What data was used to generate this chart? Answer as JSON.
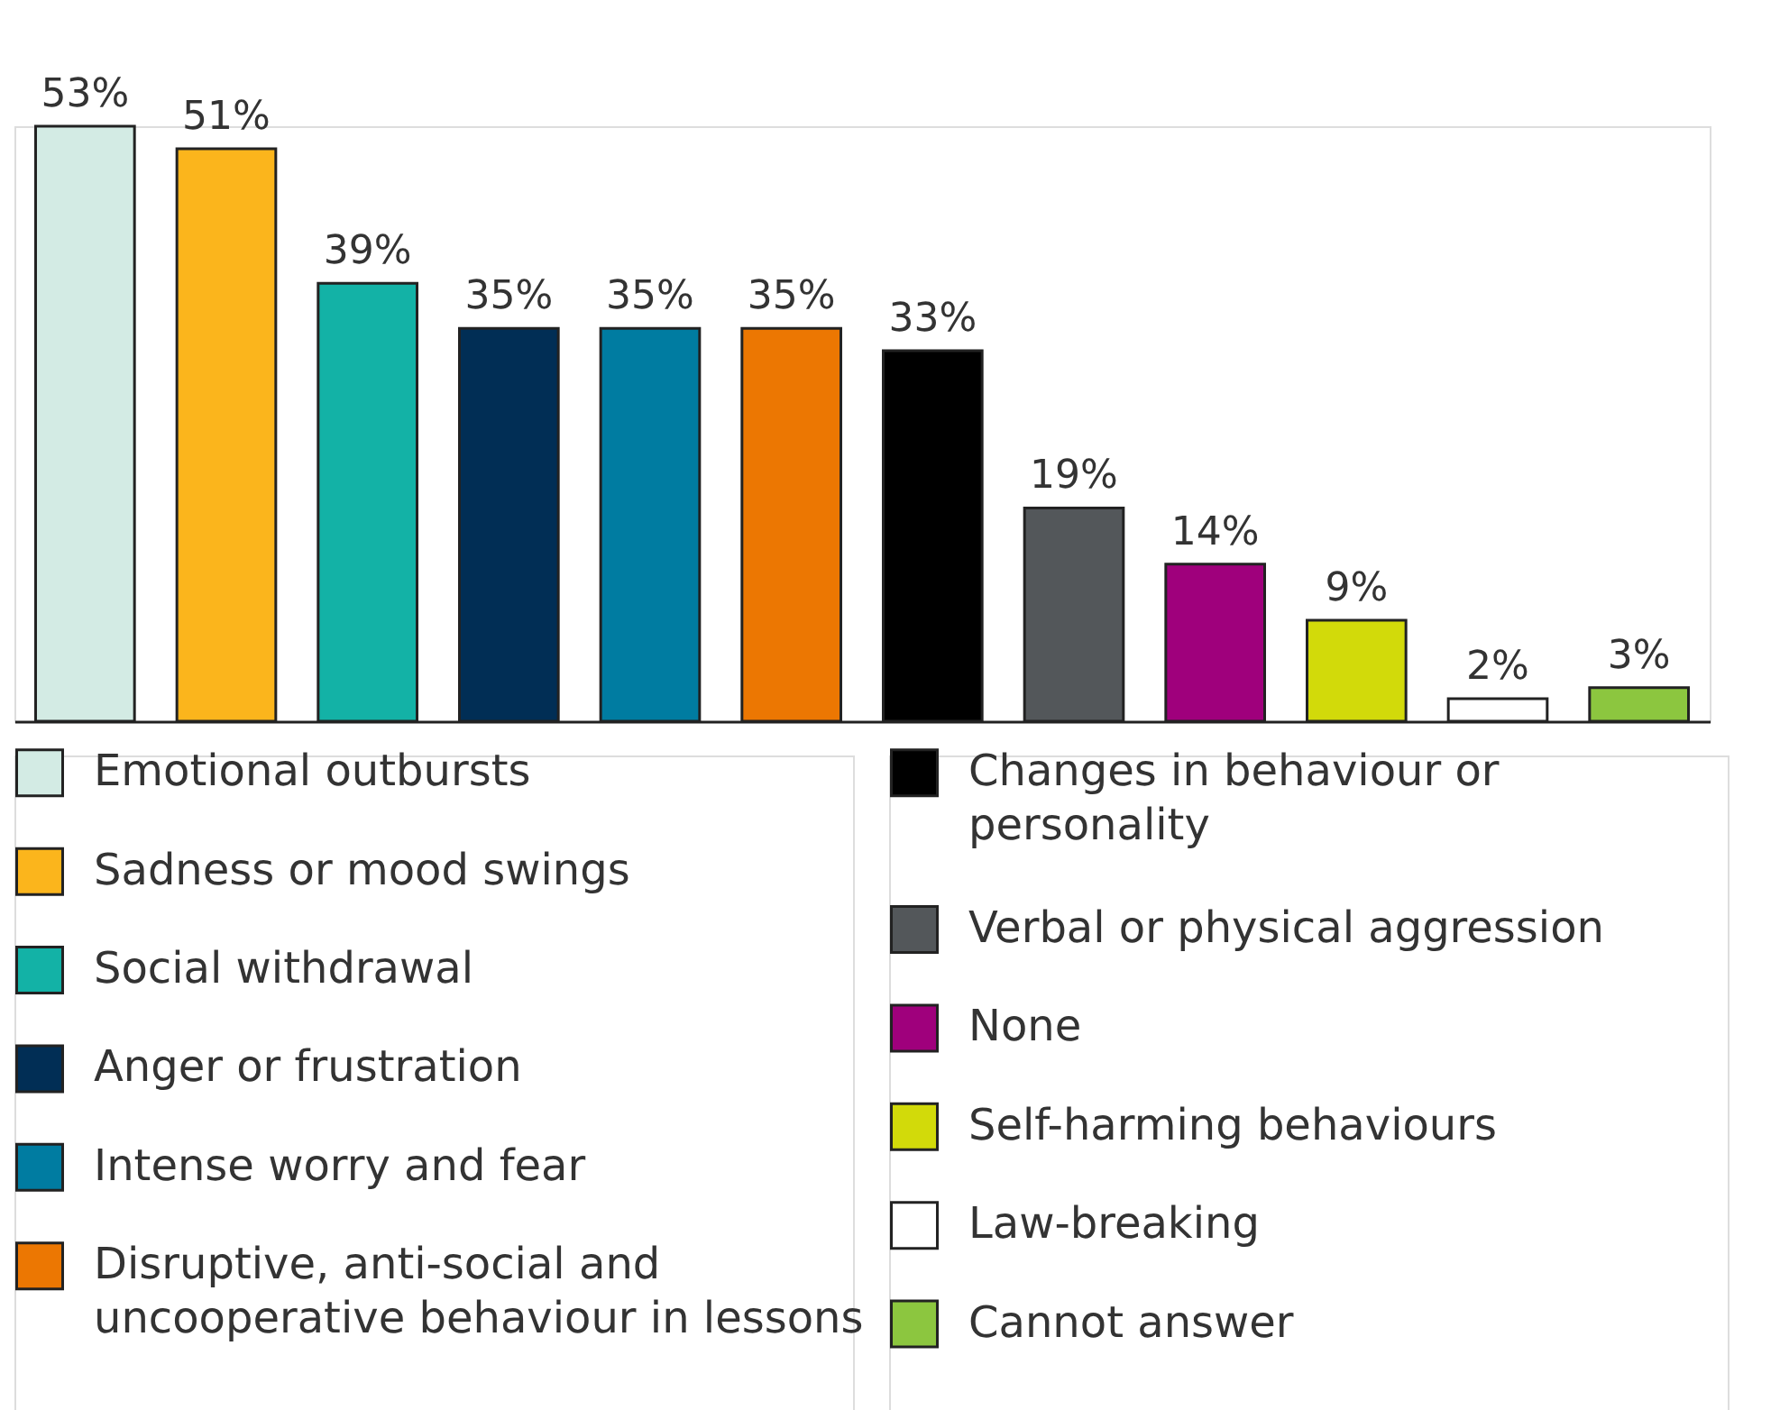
{
  "chart_data": {
    "type": "bar",
    "categories": [
      null,
      null,
      null,
      null,
      null,
      null,
      null,
      null,
      null,
      null,
      null,
      null
    ],
    "series": [
      {
        "name": "Emotional outbursts",
        "color": "#d3ebe4",
        "values": [
          53,
          null,
          null,
          null,
          null,
          null,
          null,
          null,
          null,
          null,
          null,
          null
        ],
        "value_labels": [
          "53%",
          null,
          null,
          null,
          null,
          null,
          null,
          null,
          null,
          null,
          null,
          null
        ]
      },
      {
        "name": "Sadness or mood swings",
        "color": "#fbb51c",
        "values": [
          null,
          51,
          null,
          null,
          null,
          null,
          null,
          null,
          null,
          null,
          null,
          null
        ],
        "value_labels": [
          null,
          "51%",
          null,
          null,
          null,
          null,
          null,
          null,
          null,
          null,
          null,
          null
        ]
      },
      {
        "name": "Social withdrawal",
        "color": "#13b2a6",
        "values": [
          null,
          null,
          39,
          null,
          null,
          null,
          null,
          null,
          null,
          null,
          null,
          null
        ],
        "value_labels": [
          null,
          null,
          "39%",
          null,
          null,
          null,
          null,
          null,
          null,
          null,
          null,
          null
        ]
      },
      {
        "name": "Anger or frustration",
        "color": "#012e55",
        "values": [
          null,
          null,
          null,
          35,
          null,
          null,
          null,
          null,
          null,
          null,
          null,
          null
        ],
        "value_labels": [
          null,
          null,
          null,
          "35%",
          null,
          null,
          null,
          null,
          null,
          null,
          null,
          null
        ]
      },
      {
        "name": "Intense worry and fear",
        "color": "#007ca1",
        "values": [
          null,
          null,
          null,
          null,
          35,
          null,
          null,
          null,
          null,
          null,
          null,
          null
        ],
        "value_labels": [
          null,
          null,
          null,
          null,
          "35%",
          null,
          null,
          null,
          null,
          null,
          null,
          null
        ]
      },
      {
        "name": "Disruptive, anti-social and uncooperative behaviour in lessons",
        "color": "#ec7702",
        "values": [
          null,
          null,
          null,
          null,
          null,
          35,
          null,
          null,
          null,
          null,
          null,
          null
        ],
        "value_labels": [
          null,
          null,
          null,
          null,
          null,
          "35%",
          null,
          null,
          null,
          null,
          null,
          null
        ]
      },
      {
        "name": "Changes in behaviour or personality",
        "color": "#000000",
        "values": [
          null,
          null,
          null,
          null,
          null,
          null,
          33,
          null,
          null,
          null,
          null,
          null
        ],
        "value_labels": [
          null,
          null,
          null,
          null,
          null,
          null,
          "33%",
          null,
          null,
          null,
          null,
          null
        ]
      },
      {
        "name": "Verbal or physical aggression",
        "color": "#53575a",
        "values": [
          null,
          null,
          null,
          null,
          null,
          null,
          null,
          19,
          null,
          null,
          null,
          null
        ],
        "value_labels": [
          null,
          null,
          null,
          null,
          null,
          null,
          null,
          "19%",
          null,
          null,
          null,
          null
        ]
      },
      {
        "name": "None",
        "color": "#9f007c",
        "values": [
          null,
          null,
          null,
          null,
          null,
          null,
          null,
          null,
          14,
          null,
          null,
          null
        ],
        "value_labels": [
          null,
          null,
          null,
          null,
          null,
          null,
          null,
          null,
          "14%",
          null,
          null,
          null
        ]
      },
      {
        "name": "Self-harming behaviours",
        "color": "#d2da0a",
        "values": [
          null,
          null,
          null,
          null,
          null,
          null,
          null,
          null,
          null,
          9,
          null,
          null
        ],
        "value_labels": [
          null,
          null,
          null,
          null,
          null,
          null,
          null,
          null,
          null,
          "9%",
          null,
          null
        ]
      },
      {
        "name": "Law-breaking",
        "color": "#ffffff",
        "values": [
          null,
          null,
          null,
          null,
          null,
          null,
          null,
          null,
          null,
          null,
          2,
          null
        ],
        "value_labels": [
          null,
          null,
          null,
          null,
          null,
          null,
          null,
          null,
          null,
          null,
          "2%",
          null
        ]
      },
      {
        "name": "Cannot answer",
        "color": "#8cc63f",
        "values": [
          null,
          null,
          null,
          null,
          null,
          null,
          null,
          null,
          null,
          null,
          null,
          3
        ],
        "value_labels": [
          null,
          null,
          null,
          null,
          null,
          null,
          null,
          null,
          null,
          null,
          null,
          "3%"
        ]
      }
    ],
    "stacked": true,
    "legend": "bottom",
    "tick_labels": false
  }
}
